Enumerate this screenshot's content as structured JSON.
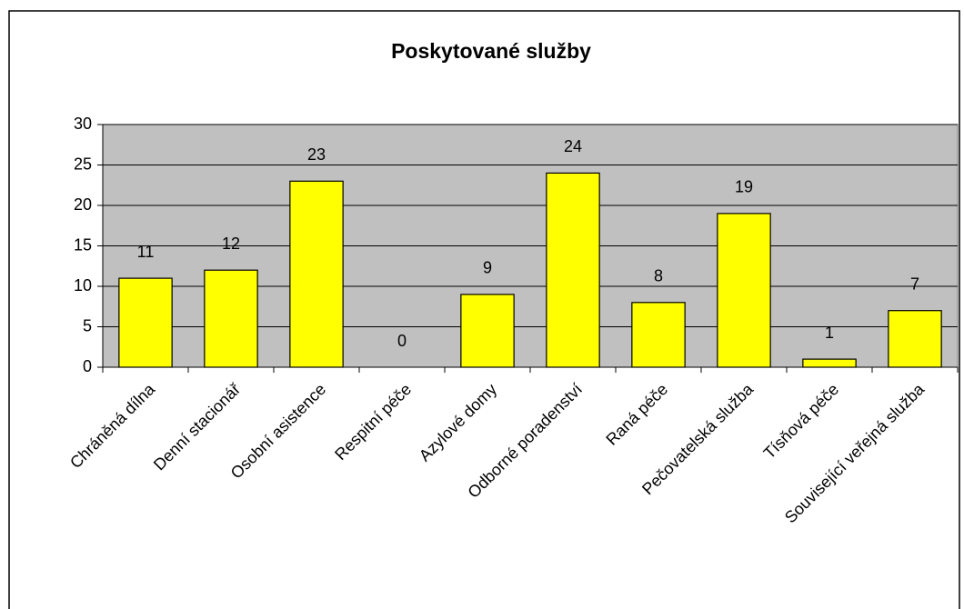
{
  "chart_data": {
    "type": "bar",
    "title": "Poskytované služby",
    "categories": [
      "Chráněná dílna",
      "Denní stacionář",
      "Osobní asistence",
      "Respitní péče",
      "Azylové domy",
      "Odborné poradenství",
      "Raná péče",
      "Pečovatelská služba",
      "Tísňová péče",
      "Související veřejná služba"
    ],
    "values": [
      11,
      12,
      23,
      0,
      9,
      24,
      8,
      19,
      1,
      7
    ],
    "color": "#ffff00",
    "plot_background": "#c0c0c0",
    "ylim": [
      0,
      30
    ],
    "yticks": [
      0,
      5,
      10,
      15,
      20,
      25,
      30
    ],
    "grid": true
  }
}
